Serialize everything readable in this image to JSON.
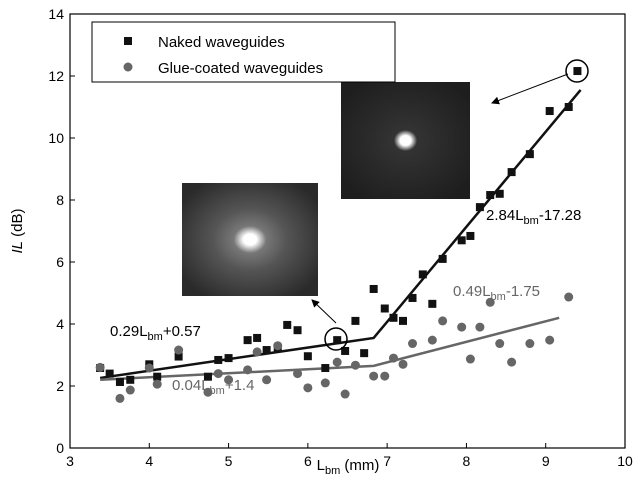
{
  "chart_data": {
    "type": "scatter",
    "xlabel": {
      "main": "L",
      "sub": "bm",
      "post": " (mm)"
    },
    "ylabel": {
      "main": "IL",
      "post": " (dB)"
    },
    "xlim": [
      3,
      10
    ],
    "xticks": [
      3,
      4,
      5,
      6,
      7,
      8,
      9,
      10
    ],
    "ylim": [
      0,
      14
    ],
    "yticks": [
      0,
      2,
      4,
      6,
      8,
      10,
      12,
      14
    ],
    "series": [
      {
        "name": "Naked waveguides",
        "color": "#111111",
        "marker": "square",
        "x": [
          3.38,
          3.5,
          3.63,
          3.76,
          4.0,
          4.1,
          4.37,
          4.74,
          4.87,
          5.0,
          5.24,
          5.36,
          5.48,
          5.62,
          5.74,
          5.87,
          6.0,
          6.22,
          6.37,
          6.47,
          6.6,
          6.71,
          6.83,
          6.97,
          7.08,
          7.2,
          7.32,
          7.45,
          7.57,
          7.7,
          7.94,
          8.05,
          8.17,
          8.3,
          8.42,
          8.57,
          8.8,
          9.05,
          9.29,
          9.4
        ],
        "values": [
          2.58,
          2.4,
          2.13,
          2.2,
          2.7,
          2.3,
          2.95,
          2.3,
          2.84,
          2.9,
          3.48,
          3.55,
          3.16,
          3.23,
          3.97,
          3.8,
          2.96,
          2.58,
          3.48,
          3.13,
          4.1,
          3.06,
          5.13,
          4.5,
          4.2,
          4.1,
          4.84,
          5.6,
          4.65,
          6.1,
          6.7,
          6.84,
          7.77,
          8.16,
          8.2,
          8.9,
          9.48,
          10.87,
          11.0,
          12.16
        ]
      },
      {
        "name": "Glue-coated waveguides",
        "color": "#666666",
        "marker": "circle",
        "x": [
          3.38,
          3.63,
          3.76,
          4.0,
          4.1,
          4.37,
          4.74,
          4.87,
          5.0,
          5.24,
          5.36,
          5.48,
          5.62,
          5.87,
          6.0,
          6.22,
          6.37,
          6.47,
          6.6,
          6.83,
          6.97,
          7.08,
          7.2,
          7.32,
          7.57,
          7.7,
          7.94,
          8.05,
          8.17,
          8.3,
          8.42,
          8.57,
          8.8,
          9.05,
          9.29
        ],
        "values": [
          2.6,
          1.6,
          1.87,
          2.58,
          2.06,
          3.16,
          1.8,
          2.4,
          2.2,
          2.52,
          3.1,
          2.2,
          3.3,
          2.4,
          1.94,
          2.1,
          2.77,
          1.74,
          2.67,
          2.32,
          2.32,
          2.9,
          2.7,
          3.37,
          3.48,
          4.1,
          3.9,
          2.87,
          3.9,
          4.7,
          3.37,
          2.77,
          3.37,
          3.48,
          4.87
        ]
      }
    ],
    "fits": [
      {
        "color": "#111111",
        "x": [
          3.38,
          6.83,
          9.44
        ],
        "values": [
          2.26,
          3.55,
          11.55
        ]
      },
      {
        "color": "#666666",
        "x": [
          3.38,
          6.83,
          9.17
        ],
        "values": [
          2.2,
          2.65,
          4.2
        ]
      }
    ],
    "annotations": [
      {
        "pre": "0.29L",
        "sub": "bm",
        "post": "+0.57",
        "color": "#000000"
      },
      {
        "pre": "0.04L",
        "sub": "bm",
        "post": "+1.4",
        "color": "#666666"
      },
      {
        "pre": "2.84L",
        "sub": "bm",
        "post": "-17.28",
        "color": "#000000"
      },
      {
        "pre": "0.49L",
        "sub": "bm",
        "post": "-1.75",
        "color": "#666666"
      }
    ],
    "legend": "upper left"
  }
}
